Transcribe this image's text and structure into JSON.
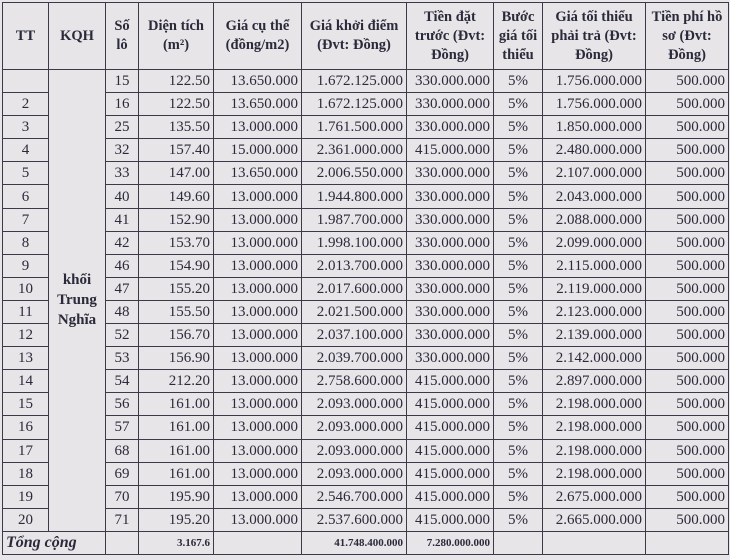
{
  "headers": [
    "TT",
    "KQH",
    "Số lô",
    "Diện tích (m²)",
    "Giá cụ thể (đồng/m2)",
    "Giá khởi điểm (Đvt: Đồng)",
    "Tiền đặt trước (Đvt: Đồng)",
    "Bước giá tối thiểu",
    "Giá tối thiểu phải trả (Đvt: Đồng)",
    "Tiền phí hồ sơ (Đvt: Đồng)"
  ],
  "kqh": "khối Trung Nghĩa",
  "rows": [
    [
      "",
      "15",
      "122.50",
      "13.650.000",
      "1.672.125.000",
      "330.000.000",
      "5%",
      "1.756.000.000",
      "500.000"
    ],
    [
      "2",
      "16",
      "122.50",
      "13.650.000",
      "1.672.125.000",
      "330.000.000",
      "5%",
      "1.756.000.000",
      "500.000"
    ],
    [
      "3",
      "25",
      "135.50",
      "13.000.000",
      "1.761.500.000",
      "330.000.000",
      "5%",
      "1.850.000.000",
      "500.000"
    ],
    [
      "4",
      "32",
      "157.40",
      "15.000.000",
      "2.361.000.000",
      "415.000.000",
      "5%",
      "2.480.000.000",
      "500.000"
    ],
    [
      "5",
      "33",
      "147.00",
      "13.650.000",
      "2.006.550.000",
      "330.000.000",
      "5%",
      "2.107.000.000",
      "500.000"
    ],
    [
      "6",
      "40",
      "149.60",
      "13.000.000",
      "1.944.800.000",
      "330.000.000",
      "5%",
      "2.043.000.000",
      "500.000"
    ],
    [
      "7",
      "41",
      "152.90",
      "13.000.000",
      "1.987.700.000",
      "330.000.000",
      "5%",
      "2.088.000.000",
      "500.000"
    ],
    [
      "8",
      "42",
      "153.70",
      "13.000.000",
      "1.998.100.000",
      "330.000.000",
      "5%",
      "2.099.000.000",
      "500.000"
    ],
    [
      "9",
      "46",
      "154.90",
      "13.000.000",
      "2.013.700.000",
      "330.000.000",
      "5%",
      "2.115.000.000",
      "500.000"
    ],
    [
      "10",
      "47",
      "155.20",
      "13.000.000",
      "2.017.600.000",
      "330.000.000",
      "5%",
      "2.119.000.000",
      "500.000"
    ],
    [
      "11",
      "48",
      "155.50",
      "13.000.000",
      "2.021.500.000",
      "330.000.000",
      "5%",
      "2.123.000.000",
      "500.000"
    ],
    [
      "12",
      "52",
      "156.70",
      "13.000.000",
      "2.037.100.000",
      "330.000.000",
      "5%",
      "2.139.000.000",
      "500.000"
    ],
    [
      "13",
      "53",
      "156.90",
      "13.000.000",
      "2.039.700.000",
      "330.000.000",
      "5%",
      "2.142.000.000",
      "500.000"
    ],
    [
      "14",
      "54",
      "212.20",
      "13.000.000",
      "2.758.600.000",
      "415.000.000",
      "5%",
      "2.897.000.000",
      "500.000"
    ],
    [
      "15",
      "56",
      "161.00",
      "13.000.000",
      "2.093.000.000",
      "415.000.000",
      "5%",
      "2.198.000.000",
      "500.000"
    ],
    [
      "16",
      "57",
      "161.00",
      "13.000.000",
      "2.093.000.000",
      "415.000.000",
      "5%",
      "2.198.000.000",
      "500.000"
    ],
    [
      "17",
      "68",
      "161.00",
      "13.000.000",
      "2.093.000.000",
      "415.000.000",
      "5%",
      "2.198.000.000",
      "500.000"
    ],
    [
      "18",
      "69",
      "161.00",
      "13.000.000",
      "2.093.000.000",
      "415.000.000",
      "5%",
      "2.198.000.000",
      "500.000"
    ],
    [
      "19",
      "70",
      "195.90",
      "13.000.000",
      "2.546.700.000",
      "415.000.000",
      "5%",
      "2.675.000.000",
      "500.000"
    ],
    [
      "20",
      "71",
      "195.20",
      "13.000.000",
      "2.537.600.000",
      "415.000.000",
      "5%",
      "2.665.000.000",
      "500.000"
    ]
  ],
  "total": {
    "label": "Tổng cộng",
    "area": "3.167.6",
    "start_price": "41.748.400.000",
    "deposit": "7.280.000.000"
  }
}
